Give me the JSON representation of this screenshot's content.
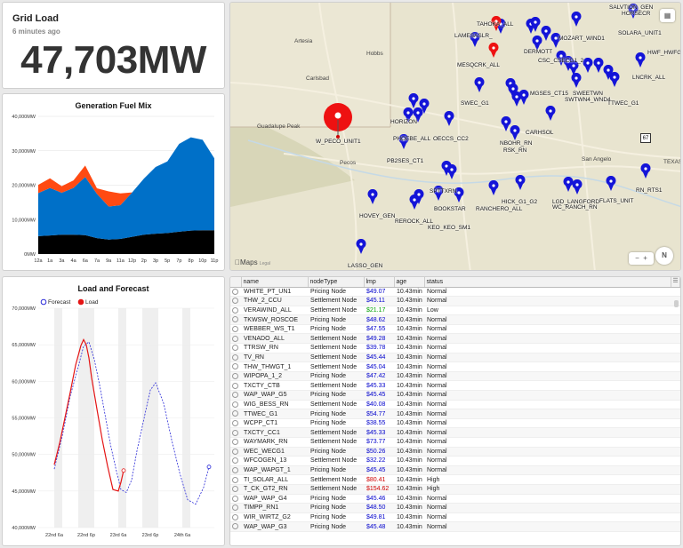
{
  "grid_load": {
    "title": "Grid Load",
    "updated": "6 minutes ago",
    "value": "47,703MW"
  },
  "fuel_mix": {
    "title": "Generation Fuel Mix",
    "chart_data": {
      "type": "area",
      "title": "Generation Fuel Mix",
      "x": [
        "12a",
        "1a",
        "3a",
        "4a",
        "6a",
        "7a",
        "9a",
        "11a",
        "12p",
        "2p",
        "3p",
        "5p",
        "7p",
        "8p",
        "10p",
        "11p"
      ],
      "ylim": [
        0,
        40000
      ],
      "yticks": [
        "0MW",
        "10,000MW",
        "20,000MW",
        "30,000MW",
        "40,000MW"
      ],
      "series": [
        {
          "color": "#000000",
          "values": [
            5200,
            5400,
            5600,
            5600,
            5500,
            4600,
            4200,
            4400,
            5000,
            5600,
            5900,
            6100,
            6500,
            6800,
            6900,
            6900
          ]
        },
        {
          "color": "#0070c8",
          "values": [
            12500,
            13800,
            12200,
            13600,
            16900,
            12900,
            9600,
            9800,
            12900,
            16300,
            19400,
            20800,
            25500,
            27100,
            26300,
            20900
          ]
        },
        {
          "color": "#ff4a12",
          "values": [
            2400,
            2800,
            1900,
            2200,
            3300,
            1600,
            4400,
            3400,
            0,
            0,
            0,
            0,
            0,
            0,
            0,
            0
          ]
        }
      ]
    }
  },
  "load_forecast": {
    "title": "Load and Forecast",
    "legend": [
      "Forecast",
      "Load"
    ],
    "chart_data": {
      "type": "line",
      "title": "Load and Forecast",
      "x_ticks": [
        "22nd 6a",
        "22nd 6p",
        "23rd 6a",
        "23rd 6p",
        "24th 6a"
      ],
      "yticks": [
        "40,000MW",
        "45,000MW",
        "50,000MW",
        "55,000MW",
        "60,000MW",
        "65,000MW",
        "70,000MW"
      ],
      "ylim": [
        40000,
        70000
      ],
      "series": [
        {
          "name": "Forecast",
          "color": "#2a2ad8",
          "x_hours": [
            0,
            3,
            6,
            9,
            11,
            13,
            15,
            17,
            19,
            21,
            23,
            25,
            27,
            29,
            31,
            34,
            36,
            38,
            41,
            44,
            47,
            50,
            53,
            56,
            58
          ],
          "values": [
            48000,
            52500,
            58000,
            62000,
            64800,
            65400,
            63000,
            59500,
            55500,
            51500,
            48200,
            45200,
            44800,
            46500,
            50500,
            55500,
            58800,
            59800,
            57000,
            52000,
            47500,
            43800,
            43200,
            45500,
            48300
          ]
        },
        {
          "name": "Load",
          "color": "#e41414",
          "x_hours": [
            0,
            2,
            4,
            6,
            8,
            10,
            11,
            12,
            13,
            14,
            16,
            18,
            20,
            22,
            24,
            25,
            26
          ],
          "values": [
            48600,
            51500,
            55000,
            58500,
            62200,
            64900,
            65700,
            65000,
            63200,
            60500,
            56200,
            52000,
            48400,
            45200,
            45000,
            46200,
            47800
          ]
        }
      ]
    }
  },
  "map": {
    "attribution": "Maps",
    "legal": "Legal",
    "zoom_out": "−",
    "zoom_in": "+",
    "compass": "N",
    "cities": [
      "Artesia",
      "Hobbs",
      "Carlsbad",
      "Guadalupe Peak",
      "Pecos",
      "San Angelo",
      "TEXAS"
    ],
    "highway": "67",
    "selected_node": "W_PECO_UNIT1",
    "node_labels": [
      "SALVTION_GEN",
      "HORSECR",
      "TAHOKA_ALL",
      "SOLARA_UNIT1",
      "LAMESASLR_",
      "MOZART_WIND1",
      "HWF_HWFG",
      "MESQCRK_ALL",
      "DERMOTT",
      "CSC_CSECG1_2",
      "LNCRK_ALL",
      "MGSES_CT15",
      "SWEETWN",
      "SWTWN4_WND4",
      "TTWEC_G1",
      "SWEC_G1",
      "HORIZON",
      "CARHSOL",
      "NBOHR_RN",
      "PHOEBE_ALL",
      "OECCS_CC2",
      "RSK_RN",
      "PB2SES_CT1",
      "HOVEY_GEN",
      "REROCK_ALL",
      "SPTTXRN",
      "BOOKSTAR",
      "RANCHERO_ALL",
      "HICK_G1_G2",
      "LGD_LANGFORD",
      "WC_RANCH_RN",
      "FLATS_UNIT",
      "RN_RTS1",
      "KEO_KEO_SM1",
      "LASSO_GEN"
    ]
  },
  "table": {
    "columns": [
      "name",
      "nodeType",
      "lmp",
      "age",
      "status"
    ],
    "rows": [
      [
        "WHITE_PT_UN1",
        "Pricing Node",
        "$49.07",
        "10.43min",
        "Normal"
      ],
      [
        "THW_2_CCU",
        "Settlement Node",
        "$45.11",
        "10.43min",
        "Normal"
      ],
      [
        "VERAWIND_ALL",
        "Settlement Node",
        "$21.17",
        "10.43min",
        "Low"
      ],
      [
        "TKWSW_ROSCOE",
        "Pricing Node",
        "$48.62",
        "10.43min",
        "Normal"
      ],
      [
        "WEBBER_WS_T1",
        "Pricing Node",
        "$47.55",
        "10.43min",
        "Normal"
      ],
      [
        "VENADO_ALL",
        "Settlement Node",
        "$49.28",
        "10.43min",
        "Normal"
      ],
      [
        "TTRSW_RN",
        "Settlement Node",
        "$39.78",
        "10.43min",
        "Normal"
      ],
      [
        "TV_RN",
        "Settlement Node",
        "$45.44",
        "10.43min",
        "Normal"
      ],
      [
        "THW_THWGT_1",
        "Settlement Node",
        "$45.04",
        "10.43min",
        "Normal"
      ],
      [
        "WIPOPA_1_2",
        "Pricing Node",
        "$47.42",
        "10.43min",
        "Normal"
      ],
      [
        "TXCTY_CTB",
        "Settlement Node",
        "$45.33",
        "10.43min",
        "Normal"
      ],
      [
        "WAP_WAP_G5",
        "Pricing Node",
        "$45.45",
        "10.43min",
        "Normal"
      ],
      [
        "WIG_BESS_RN",
        "Settlement Node",
        "$40.08",
        "10.43min",
        "Normal"
      ],
      [
        "TTWEC_G1",
        "Pricing Node",
        "$54.77",
        "10.43min",
        "Normal"
      ],
      [
        "WCPP_CT1",
        "Pricing Node",
        "$38.55",
        "10.43min",
        "Normal"
      ],
      [
        "TXCTY_CC1",
        "Settlement Node",
        "$45.33",
        "10.43min",
        "Normal"
      ],
      [
        "WAYMARK_RN",
        "Settlement Node",
        "$73.77",
        "10.43min",
        "Normal"
      ],
      [
        "WEC_WECG1",
        "Pricing Node",
        "$50.26",
        "10.43min",
        "Normal"
      ],
      [
        "WFCOGEN_13",
        "Settlement Node",
        "$32.22",
        "10.43min",
        "Normal"
      ],
      [
        "WAP_WAPGT_1",
        "Pricing Node",
        "$45.45",
        "10.43min",
        "Normal"
      ],
      [
        "TI_SOLAR_ALL",
        "Settlement Node",
        "$80.41",
        "10.43min",
        "High"
      ],
      [
        "T_CK_GT2_RN",
        "Settlement Node",
        "$154.62",
        "10.43min",
        "High"
      ],
      [
        "WAP_WAP_G4",
        "Pricing Node",
        "$45.46",
        "10.43min",
        "Normal"
      ],
      [
        "TIMPP_RN1",
        "Pricing Node",
        "$48.50",
        "10.43min",
        "Normal"
      ],
      [
        "WIR_WIRTZ_G2",
        "Pricing Node",
        "$49.81",
        "10.43min",
        "Normal"
      ],
      [
        "WAP_WAP_G3",
        "Pricing Node",
        "$45.48",
        "10.43min",
        "Normal"
      ]
    ]
  }
}
